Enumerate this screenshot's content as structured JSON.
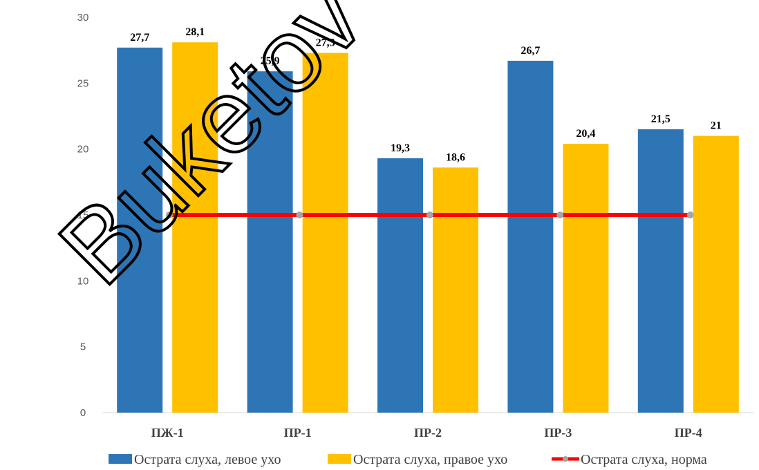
{
  "watermark": "Buketov",
  "chart_data": {
    "type": "bar",
    "categories": [
      "ПЖ-1",
      "ПР-1",
      "ПР-2",
      "ПР-3",
      "ПР-4"
    ],
    "series": [
      {
        "name": "Острата слуха, левое ухо",
        "type": "bar",
        "color": "#2E75B6",
        "values": [
          27.7,
          25.9,
          19.3,
          26.7,
          21.5
        ],
        "labels": [
          "27,7",
          "25,9",
          "19,3",
          "26,7",
          "21,5"
        ]
      },
      {
        "name": "Острата слуха, правое ухо",
        "type": "bar",
        "color": "#FFC000",
        "values": [
          28.1,
          27.3,
          18.6,
          20.4,
          21
        ],
        "labels": [
          "28,1",
          "27,3",
          "18,6",
          "20,4",
          "21"
        ]
      },
      {
        "name": "Острата слуха, норма",
        "type": "line",
        "color": "#FF0000",
        "marker_color": "#A5A5A5",
        "values": [
          15,
          15,
          15,
          15,
          15
        ]
      }
    ],
    "ylim": [
      0,
      30
    ],
    "yticks": [
      "0",
      "5",
      "10",
      "15",
      "20",
      "25",
      "30"
    ],
    "grid": false,
    "legend_position": "bottom"
  }
}
